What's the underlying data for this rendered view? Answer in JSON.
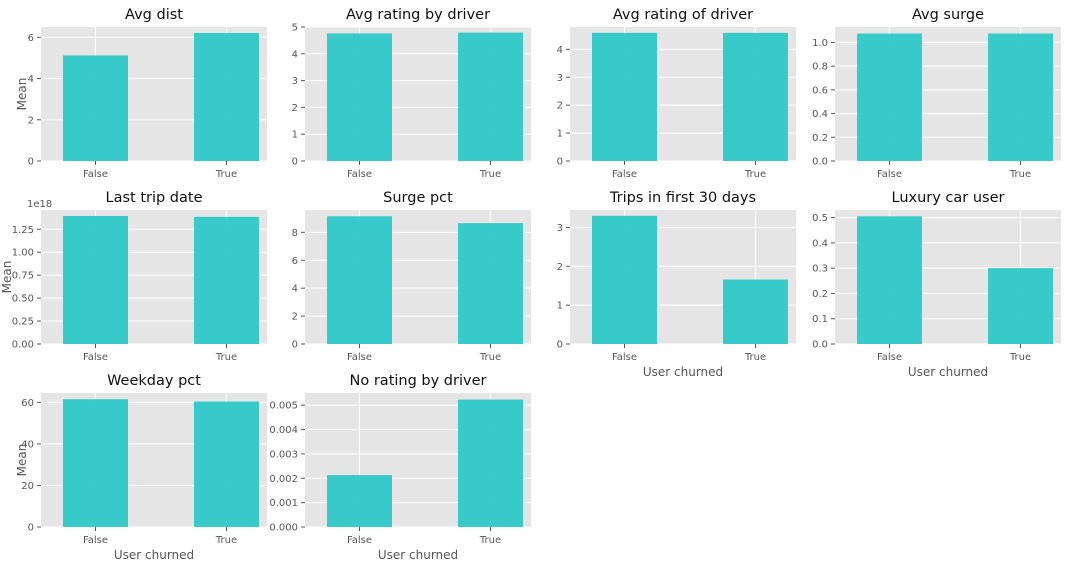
{
  "bar_color": "#2ec7c7",
  "panel_color": "#e5e5e5",
  "chart_data": [
    {
      "type": "bar",
      "title": "Avg dist",
      "categories": [
        "False",
        "True"
      ],
      "values": [
        5.12,
        6.21
      ],
      "ylim": [
        0,
        6.5
      ],
      "yticks": [
        0,
        2,
        4,
        6
      ],
      "ytick_labels": [
        "0",
        "2",
        "4",
        "6"
      ],
      "ylabel": "Mean",
      "xlabel": "",
      "offset_text": "",
      "grid": true
    },
    {
      "type": "bar",
      "title": "Avg rating by driver",
      "categories": [
        "False",
        "True"
      ],
      "values": [
        4.76,
        4.79
      ],
      "ylim": [
        0,
        5.0
      ],
      "yticks": [
        0,
        1,
        2,
        3,
        4,
        5
      ],
      "ytick_labels": [
        "0",
        "1",
        "2",
        "3",
        "4",
        "5"
      ],
      "ylabel": "",
      "xlabel": "",
      "offset_text": "",
      "grid": true
    },
    {
      "type": "bar",
      "title": "Avg rating of driver",
      "categories": [
        "False",
        "True"
      ],
      "values": [
        4.59,
        4.59
      ],
      "ylim": [
        0,
        4.8
      ],
      "yticks": [
        0,
        1,
        2,
        3,
        4
      ],
      "ytick_labels": [
        "0",
        "1",
        "2",
        "3",
        "4"
      ],
      "ylabel": "",
      "xlabel": "",
      "offset_text": "",
      "grid": true
    },
    {
      "type": "bar",
      "title": "Avg surge",
      "categories": [
        "False",
        "True"
      ],
      "values": [
        1.075,
        1.075
      ],
      "ylim": [
        0,
        1.13
      ],
      "yticks": [
        0,
        0.2,
        0.4,
        0.6,
        0.8,
        1.0
      ],
      "ytick_labels": [
        "0.0",
        "0.2",
        "0.4",
        "0.6",
        "0.8",
        "1.0"
      ],
      "ylabel": "",
      "xlabel": "",
      "offset_text": "",
      "grid": true
    },
    {
      "type": "bar",
      "title": "Last trip date",
      "categories": [
        "False",
        "True"
      ],
      "values": [
        1.395,
        1.385
      ],
      "ylim": [
        0,
        1.46
      ],
      "yticks": [
        0,
        0.25,
        0.5,
        0.75,
        1.0,
        1.25
      ],
      "ytick_labels": [
        "0.00",
        "0.25",
        "0.50",
        "0.75",
        "1.00",
        "1.25"
      ],
      "ylabel": "Mean",
      "xlabel": "",
      "offset_text": "1e18",
      "grid": true
    },
    {
      "type": "bar",
      "title": "Surge pct",
      "categories": [
        "False",
        "True"
      ],
      "values": [
        9.15,
        8.66
      ],
      "ylim": [
        0,
        9.6
      ],
      "yticks": [
        0,
        2,
        4,
        6,
        8
      ],
      "ytick_labels": [
        "0",
        "2",
        "4",
        "6",
        "8"
      ],
      "ylabel": "",
      "xlabel": "",
      "offset_text": "",
      "grid": true
    },
    {
      "type": "bar",
      "title": "Trips in first 30 days",
      "categories": [
        "False",
        "True"
      ],
      "values": [
        3.3,
        1.66
      ],
      "ylim": [
        0,
        3.45
      ],
      "yticks": [
        0,
        1,
        2,
        3
      ],
      "ytick_labels": [
        "0",
        "1",
        "2",
        "3"
      ],
      "ylabel": "",
      "xlabel": "User churned",
      "offset_text": "",
      "grid": true
    },
    {
      "type": "bar",
      "title": "Luxury car user",
      "categories": [
        "False",
        "True"
      ],
      "values": [
        0.505,
        0.3
      ],
      "ylim": [
        0,
        0.53
      ],
      "yticks": [
        0,
        0.1,
        0.2,
        0.3,
        0.4,
        0.5
      ],
      "ytick_labels": [
        "0.0",
        "0.1",
        "0.2",
        "0.3",
        "0.4",
        "0.5"
      ],
      "ylabel": "",
      "xlabel": "User churned",
      "offset_text": "",
      "grid": true
    },
    {
      "type": "bar",
      "title": "Weekday pct",
      "categories": [
        "False",
        "True"
      ],
      "values": [
        61.5,
        60.4
      ],
      "ylim": [
        0,
        64.5
      ],
      "yticks": [
        0,
        20,
        40,
        60
      ],
      "ytick_labels": [
        "0",
        "20",
        "40",
        "60"
      ],
      "ylabel": "Mean",
      "xlabel": "User churned",
      "offset_text": "",
      "grid": true
    },
    {
      "type": "bar",
      "title": "No rating by driver",
      "categories": [
        "False",
        "True"
      ],
      "values": [
        0.00213,
        0.00523
      ],
      "ylim": [
        0,
        0.0055
      ],
      "yticks": [
        0,
        0.001,
        0.002,
        0.003,
        0.004,
        0.005
      ],
      "ytick_labels": [
        "0.000",
        "0.001",
        "0.002",
        "0.003",
        "0.004",
        "0.005"
      ],
      "ylabel": "",
      "xlabel": "User churned",
      "offset_text": "",
      "grid": true
    }
  ]
}
